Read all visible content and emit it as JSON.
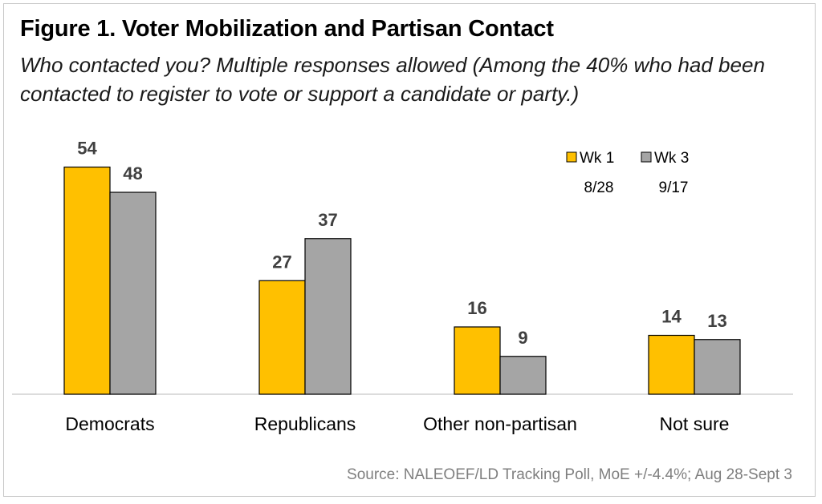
{
  "chart_data": {
    "type": "bar",
    "title": "Figure 1. Voter Mobilization and Partisan Contact",
    "subtitle": "Who contacted you? Multiple responses allowed (Among the 40% who had been contacted to register to vote or support a candidate or party.)",
    "categories": [
      "Democrats",
      "Republicans",
      "Other non-partisan",
      "Not sure"
    ],
    "series": [
      {
        "name": "Wk 1",
        "date": "8/28",
        "color": "#ffc000",
        "values": [
          54,
          27,
          16,
          14
        ]
      },
      {
        "name": "Wk 3",
        "date": "9/17",
        "color": "#a5a5a5",
        "values": [
          48,
          37,
          9,
          13
        ]
      }
    ],
    "xlabel": "",
    "ylabel": "",
    "ylim": [
      0,
      60
    ],
    "grid": false,
    "legend": "top-right",
    "source": "Source: NALEOEF/LD Tracking Poll, MoE +/-4.4%; Aug 28-Sept 3"
  }
}
